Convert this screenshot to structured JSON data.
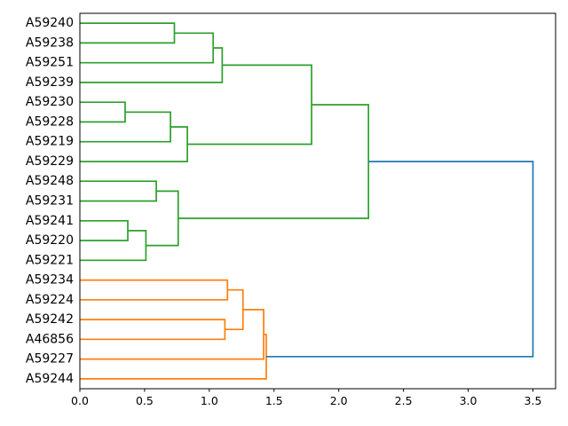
{
  "figure": {
    "kind": "dendrogram",
    "background": "#ffffff"
  },
  "chart_data": {
    "type": "dendrogram",
    "orientation": "leaves-left-root-right",
    "title": "",
    "xlabel": "",
    "ylabel": "",
    "grid": false,
    "leaf_labels": [
      "A59240",
      "A59238",
      "A59251",
      "A59239",
      "A59230",
      "A59228",
      "A59219",
      "A59229",
      "A59248",
      "A59231",
      "A59241",
      "A59220",
      "A59221",
      "A59234",
      "A59224",
      "A59242",
      "A46856",
      "A59227",
      "A59244"
    ],
    "links": [
      {
        "id": "g1",
        "children": [
          "A59240",
          "A59238"
        ],
        "distance": 0.73,
        "color_key": "green"
      },
      {
        "id": "g2",
        "children": [
          "g1",
          "A59251"
        ],
        "distance": 1.03,
        "color_key": "green"
      },
      {
        "id": "g3",
        "children": [
          "g2",
          "A59239"
        ],
        "distance": 1.1,
        "color_key": "green"
      },
      {
        "id": "g4",
        "children": [
          "A59230",
          "A59228"
        ],
        "distance": 0.35,
        "color_key": "green"
      },
      {
        "id": "g5",
        "children": [
          "g4",
          "A59219"
        ],
        "distance": 0.7,
        "color_key": "green"
      },
      {
        "id": "g6",
        "children": [
          "g5",
          "A59229"
        ],
        "distance": 0.83,
        "color_key": "green"
      },
      {
        "id": "g7",
        "children": [
          "g3",
          "g6"
        ],
        "distance": 1.79,
        "color_key": "green"
      },
      {
        "id": "g8",
        "children": [
          "A59248",
          "A59231"
        ],
        "distance": 0.59,
        "color_key": "green"
      },
      {
        "id": "g9",
        "children": [
          "A59241",
          "A59220"
        ],
        "distance": 0.37,
        "color_key": "green"
      },
      {
        "id": "g10",
        "children": [
          "g9",
          "A59221"
        ],
        "distance": 0.51,
        "color_key": "green"
      },
      {
        "id": "g11",
        "children": [
          "g8",
          "g10"
        ],
        "distance": 0.76,
        "color_key": "green"
      },
      {
        "id": "g12",
        "children": [
          "g7",
          "g11"
        ],
        "distance": 2.23,
        "color_key": "green"
      },
      {
        "id": "o1",
        "children": [
          "A59234",
          "A59224"
        ],
        "distance": 1.14,
        "color_key": "orange"
      },
      {
        "id": "o2",
        "children": [
          "A59242",
          "A46856"
        ],
        "distance": 1.12,
        "color_key": "orange"
      },
      {
        "id": "o3",
        "children": [
          "o1",
          "o2"
        ],
        "distance": 1.26,
        "color_key": "orange"
      },
      {
        "id": "o4",
        "children": [
          "o3",
          "A59227"
        ],
        "distance": 1.42,
        "color_key": "orange"
      },
      {
        "id": "o5",
        "children": [
          "o4",
          "A59244"
        ],
        "distance": 1.44,
        "color_key": "orange"
      },
      {
        "id": "root",
        "children": [
          "g12",
          "o5"
        ],
        "distance": 3.5,
        "color_key": "blue"
      }
    ],
    "colors": {
      "green": "#2ca02c",
      "orange": "#ff7f0e",
      "blue": "#1f77b4",
      "spine": "#000000",
      "text": "#000000"
    },
    "x_axis": {
      "range": [
        0,
        3.675
      ],
      "tick_values": [
        0.0,
        0.5,
        1.0,
        1.5,
        2.0,
        2.5,
        3.0,
        3.5
      ],
      "tick_labels": [
        "0.0",
        "0.5",
        "1.0",
        "1.5",
        "2.0",
        "2.5",
        "3.0",
        "3.5"
      ]
    }
  }
}
